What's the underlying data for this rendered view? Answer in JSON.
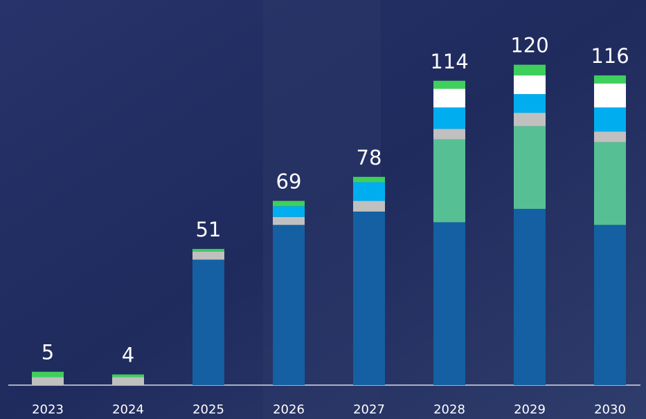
{
  "chart_data": {
    "type": "stacked_bar",
    "categories": [
      "2023",
      "2024",
      "2025",
      "2026",
      "2027",
      "2028",
      "2029",
      "2030"
    ],
    "series": [
      {
        "color": "#1460a2",
        "values": [
          0,
          0,
          47,
          60,
          65,
          61,
          66,
          60
        ]
      },
      {
        "color": "#57bf94",
        "values": [
          0,
          0,
          0,
          0,
          0,
          31,
          31,
          31
        ]
      },
      {
        "color": "#c0c0c0",
        "values": [
          3,
          3,
          3,
          3,
          4,
          4,
          5,
          4
        ]
      },
      {
        "color": "#00aeef",
        "values": [
          0,
          0,
          0,
          4,
          7,
          8,
          7,
          9
        ]
      },
      {
        "color": "#ffffff",
        "values": [
          0,
          0,
          0,
          0,
          0,
          7,
          7,
          9
        ]
      },
      {
        "color": "#3fcf5b",
        "values": [
          2,
          1,
          1,
          2,
          2,
          3,
          4,
          3
        ]
      }
    ],
    "totals": [
      5,
      4,
      51,
      69,
      78,
      114,
      120,
      116
    ],
    "ylim": [
      0,
      130
    ]
  }
}
